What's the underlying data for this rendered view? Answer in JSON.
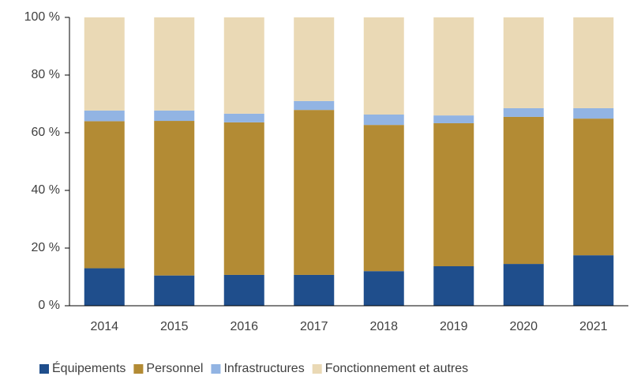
{
  "chart_data": {
    "type": "stacked_bar",
    "categories": [
      "2014",
      "2015",
      "2016",
      "2017",
      "2018",
      "2019",
      "2020",
      "2021"
    ],
    "series": [
      {
        "name": "Équipements",
        "color": "#1f4e8c",
        "values": [
          13,
          10.5,
          10.7,
          10.7,
          12,
          13.7,
          14.5,
          17.5
        ]
      },
      {
        "name": "Personnel",
        "color": "#b38b34",
        "values": [
          51,
          53.6,
          52.9,
          57.2,
          50.7,
          49.6,
          51,
          47.4
        ]
      },
      {
        "name": "Infrastructures",
        "color": "#92b4e3",
        "values": [
          3.7,
          3.6,
          3,
          3.1,
          3.6,
          2.7,
          3,
          3.6
        ]
      },
      {
        "name": "Fonctionnement et autres",
        "color": "#ead9b5",
        "values": [
          32.3,
          32.3,
          33.4,
          29,
          33.7,
          34,
          31.5,
          31.5
        ]
      }
    ],
    "ylim": [
      0,
      100
    ],
    "yticks": [
      {
        "value": 0,
        "label": "0 %"
      },
      {
        "value": 20,
        "label": "20 %"
      },
      {
        "value": 40,
        "label": "40 %"
      },
      {
        "value": 60,
        "label": "60 %"
      },
      {
        "value": 80,
        "label": "80 %"
      },
      {
        "value": 100,
        "label": "100 %"
      }
    ],
    "legend": "bottom"
  }
}
